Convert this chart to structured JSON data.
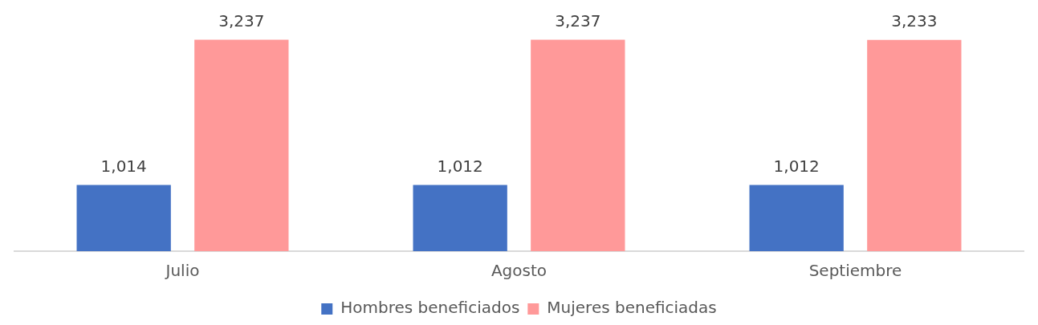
{
  "chart_data": {
    "type": "bar",
    "categories": [
      "Julio",
      "Agosto",
      "Septiembre"
    ],
    "series": [
      {
        "name": "Hombres beneficiados",
        "color": "#4472c4",
        "values": [
          1014,
          1012,
          1012
        ],
        "value_labels": [
          "1,014",
          "1,012",
          "1,012"
        ]
      },
      {
        "name": "Mujeres beneficiadas",
        "color": "#ff9999",
        "values": [
          3237,
          3237,
          3233
        ],
        "value_labels": [
          "3,237",
          "3,237",
          "3,233"
        ]
      }
    ],
    "tick_labels": "x",
    "grid": false,
    "legend": "bottom"
  }
}
